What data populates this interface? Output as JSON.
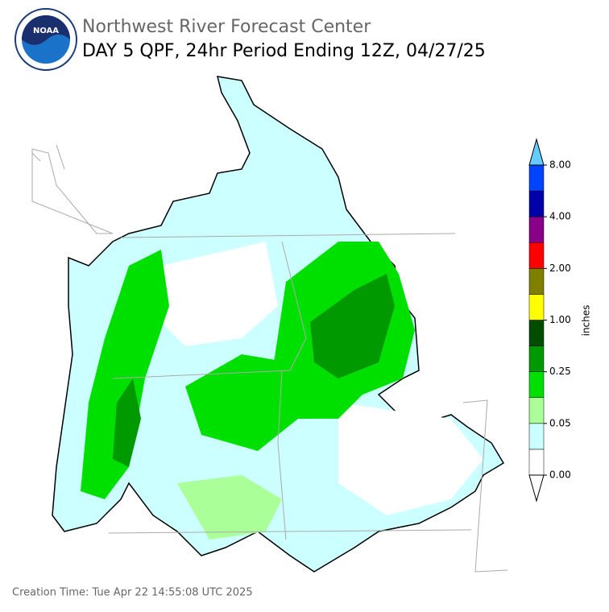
{
  "header": {
    "logo_text": "NOAA",
    "title": "Northwest River Forecast Center",
    "subtitle": "DAY 5 QPF, 24hr Period Ending 12Z, 04/27/25"
  },
  "colorbar": {
    "label": "inches",
    "colors": [
      "#ffffff",
      "#ccffff",
      "#aaff99",
      "#00e000",
      "#009900",
      "#004d00",
      "#ffff00",
      "#808000",
      "#ff0000",
      "#880088",
      "#0000aa",
      "#0044ff"
    ],
    "over_color": "#66ccff",
    "under_color": "#ffffff",
    "tick_labels": [
      "0.00",
      "0.05",
      "0.25",
      "1.00",
      "2.00",
      "4.00",
      "8.00"
    ]
  },
  "footer": {
    "creation_time": "Creation Time: Tue Apr 22 14:55:08 UTC 2025"
  }
}
